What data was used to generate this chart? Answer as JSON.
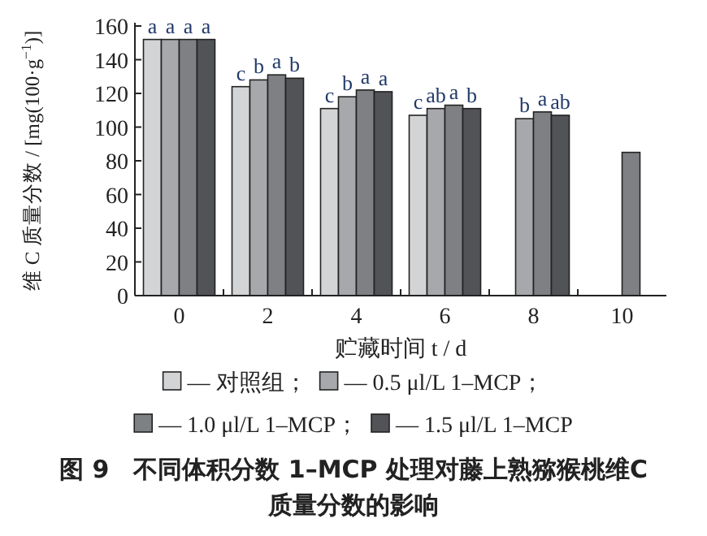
{
  "chart_data": {
    "type": "bar",
    "title": "图 9　不同体积分数 1–MCP 处理对藤上熟猕猴桃维C 质量分数的影响",
    "xlabel": "贮藏时间 t / d",
    "ylabel": "维 C 质量分数 / [mg(100·g$^{−1}$)]",
    "categories": [
      "0",
      "2",
      "4",
      "6",
      "8",
      "10"
    ],
    "series": [
      {
        "name": "— 对照组；",
        "color": "#d3d4d6",
        "values": [
          152,
          124,
          111,
          107,
          null,
          null
        ]
      },
      {
        "name": "— 0.5 μl/L 1–MCP；",
        "color": "#a7a8ab",
        "values": [
          152,
          128,
          118,
          111,
          105,
          null
        ]
      },
      {
        "name": "— 1.0 μl/L 1–MCP；",
        "color": "#7f8083",
        "values": [
          152,
          131,
          122,
          113,
          109,
          85
        ]
      },
      {
        "name": "— 1.5 μl/L 1–MCP",
        "color": "#525356",
        "values": [
          152,
          129,
          121,
          111,
          107,
          null
        ]
      }
    ],
    "ylim": [
      0,
      160
    ],
    "yticks": [
      0,
      20,
      40,
      60,
      80,
      100,
      120,
      140,
      160
    ],
    "grid": false,
    "legend": "bottom",
    "annotations": [
      {
        "text": "a",
        "x": "0",
        "y": 152
      },
      {
        "text": "a",
        "x": "0",
        "y": 152
      },
      {
        "text": "a",
        "x": "0",
        "y": 152
      },
      {
        "text": "a",
        "x": "0",
        "y": 152
      },
      {
        "text": "c",
        "x": "2",
        "y": 124
      },
      {
        "text": "b",
        "x": "2",
        "y": 128
      },
      {
        "text": "a",
        "x": "2",
        "y": 131
      },
      {
        "text": "b",
        "x": "2",
        "y": 129
      },
      {
        "text": "c",
        "x": "4",
        "y": 111
      },
      {
        "text": "b",
        "x": "4",
        "y": 118
      },
      {
        "text": "a",
        "x": "4",
        "y": 122
      },
      {
        "text": "a",
        "x": "4",
        "y": 121
      },
      {
        "text": "c",
        "x": "6",
        "y": 107
      },
      {
        "text": "ab",
        "x": "6",
        "y": 111
      },
      {
        "text": "a",
        "x": "6",
        "y": 113
      },
      {
        "text": "b",
        "x": "6",
        "y": 111
      },
      {
        "text": "b",
        "x": "8",
        "y": 105
      },
      {
        "text": "a",
        "x": "8",
        "y": 109
      },
      {
        "text": "ab",
        "x": "8",
        "y": 107
      }
    ]
  }
}
